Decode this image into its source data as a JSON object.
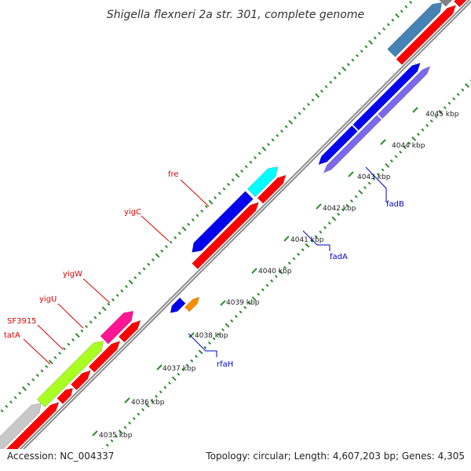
{
  "header": {
    "title": "Shigella flexneri 2a str. 301, complete genome"
  },
  "footer": {
    "accession": "Accession: NC_004337",
    "summary": "Topology: circular; Length: 4,607,203 bp; Genes: 4,305"
  },
  "colors": {
    "backbone": "#8a8a8a",
    "tick": "#2e8b2e",
    "red": "#ff0000",
    "blue": "#0000ee",
    "slate": "#7b68ee",
    "lime": "#aaff22",
    "magenta": "#ff1493",
    "cyan": "#00ffff",
    "orange": "#ff8c00",
    "steel": "#4682b4",
    "gray": "#808080",
    "lightgray": "#c8c8c8",
    "darkslate": "#483d8b",
    "label_red": "#dd0000",
    "label_blue": "#0000cc"
  },
  "ruler": {
    "kbp_labels": [
      "4035 kbp",
      "4036 kbp",
      "4037 kbp",
      "4038 kbp",
      "4039 kbp",
      "4040 kbp",
      "4041 kbp",
      "4042 kbp",
      "4043 kbp",
      "4044 kbp",
      "4045 kbp"
    ]
  },
  "gene_labels": {
    "fre": "fre",
    "yigC": "yigC",
    "yigW": "yigW",
    "yigU": "yigU",
    "SF3915": "SF3915",
    "tatA": "tatA",
    "fadB": "fadB",
    "fadA": "fadA",
    "rfaH": "rfaH"
  }
}
